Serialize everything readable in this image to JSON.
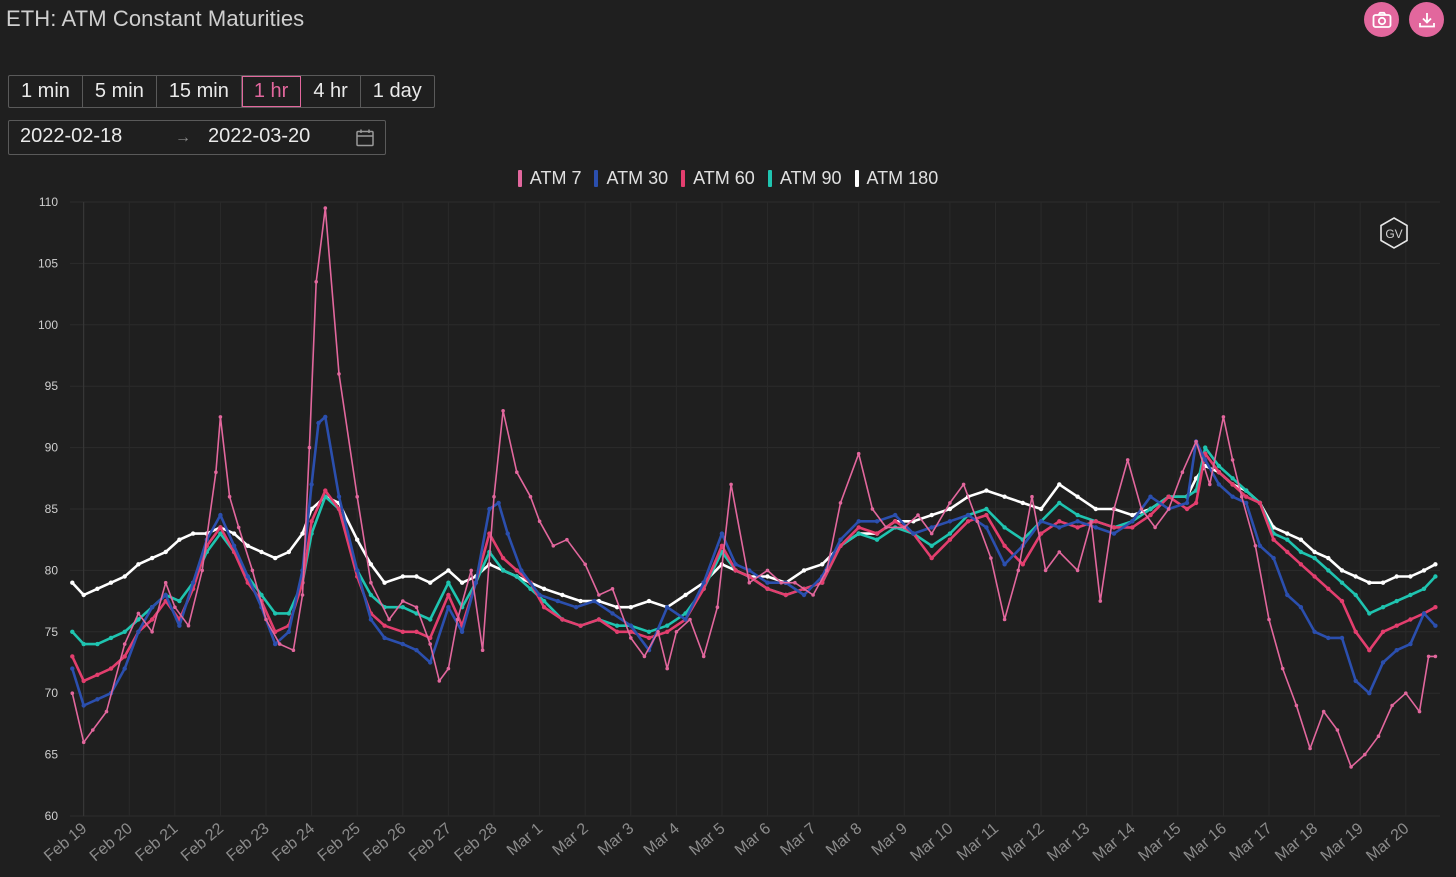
{
  "title": "ETH: ATM Constant Maturities",
  "toolbar": {
    "camera_icon": "camera-icon",
    "download_icon": "download-icon",
    "accent": "#e2679d"
  },
  "intervals": [
    {
      "label": "1 min",
      "active": false
    },
    {
      "label": "5 min",
      "active": false
    },
    {
      "label": "15 min",
      "active": false
    },
    {
      "label": "1 hr",
      "active": true
    },
    {
      "label": "4 hr",
      "active": false
    },
    {
      "label": "1 day",
      "active": false
    }
  ],
  "date_range": {
    "start": "2022-02-18",
    "separator": "→",
    "end": "2022-03-20",
    "calendar_icon": "calendar-icon"
  },
  "watermark": "GV",
  "chart_data": {
    "type": "line",
    "ylim": [
      60,
      110
    ],
    "yticks": [
      60,
      65,
      70,
      75,
      80,
      85,
      90,
      95,
      100,
      105,
      110
    ],
    "xticks": [
      "Feb 19",
      "Feb 20",
      "Feb 21",
      "Feb 22",
      "Feb 23",
      "Feb 24",
      "Feb 25",
      "Feb 26",
      "Feb 27",
      "Feb 28",
      "Mar 1",
      "Mar 2",
      "Mar 3",
      "Mar 4",
      "Mar 5",
      "Mar 6",
      "Mar 7",
      "Mar 8",
      "Mar 9",
      "Mar 10",
      "Mar 11",
      "Mar 12",
      "Mar 13",
      "Mar 14",
      "Mar 15",
      "Mar 16",
      "Mar 17",
      "Mar 18",
      "Mar 19",
      "Mar 20"
    ],
    "xlim": [
      -0.3,
      29.75
    ],
    "grid": true,
    "legend_position": "top-center",
    "series": [
      {
        "name": "ATM 7",
        "color": "#e2679d",
        "x": [
          -0.25,
          0,
          0.2,
          0.5,
          0.9,
          1.2,
          1.5,
          1.8,
          2.0,
          2.3,
          2.6,
          2.9,
          3.0,
          3.2,
          3.4,
          3.7,
          4.0,
          4.3,
          4.6,
          4.8,
          4.95,
          5.1,
          5.3,
          5.6,
          6.0,
          6.3,
          6.7,
          7.0,
          7.3,
          7.6,
          7.8,
          8.0,
          8.2,
          8.5,
          8.75,
          9.0,
          9.2,
          9.5,
          9.8,
          10.0,
          10.3,
          10.6,
          11.0,
          11.3,
          11.6,
          12.0,
          12.3,
          12.6,
          12.8,
          13.0,
          13.3,
          13.6,
          13.9,
          14.2,
          14.6,
          15.0,
          15.3,
          15.6,
          16.0,
          16.3,
          16.6,
          17.0,
          17.3,
          17.6,
          18.0,
          18.3,
          18.6,
          19.0,
          19.3,
          19.6,
          19.9,
          20.2,
          20.5,
          20.8,
          21.1,
          21.4,
          21.8,
          22.1,
          22.3,
          22.6,
          22.9,
          23.2,
          23.5,
          23.8,
          24.1,
          24.4,
          24.7,
          25.0,
          25.2,
          25.4,
          25.7,
          26.0,
          26.3,
          26.6,
          26.9,
          27.2,
          27.5,
          27.8,
          28.1,
          28.4,
          28.7,
          29.0,
          29.3,
          29.5,
          29.65
        ],
        "y": [
          70.0,
          66.0,
          67.0,
          68.5,
          74.0,
          76.5,
          75.0,
          79.0,
          77.0,
          75.5,
          80.0,
          88.0,
          92.5,
          86.0,
          83.5,
          80.0,
          76.0,
          74.0,
          73.5,
          78.0,
          90.0,
          103.5,
          109.5,
          96.0,
          86.0,
          79.0,
          76.0,
          77.5,
          77.0,
          74.0,
          71.0,
          72.0,
          76.0,
          80.0,
          73.5,
          86.0,
          93.0,
          88.0,
          86.0,
          84.0,
          82.0,
          82.5,
          80.5,
          78.0,
          78.5,
          74.5,
          73.0,
          75.0,
          72.0,
          75.0,
          76.0,
          73.0,
          77.0,
          87.0,
          79.0,
          80.0,
          79.0,
          79.0,
          78.0,
          80.0,
          85.5,
          89.5,
          85.0,
          83.5,
          83.5,
          84.5,
          83.0,
          85.5,
          87.0,
          84.0,
          81.0,
          76.0,
          80.0,
          86.0,
          80.0,
          81.5,
          80.0,
          84.0,
          77.5,
          85.0,
          89.0,
          85.0,
          83.5,
          85.0,
          88.0,
          90.5,
          87.0,
          92.5,
          89.0,
          86.0,
          82.0,
          76.0,
          72.0,
          69.0,
          65.5,
          68.5,
          67.0,
          64.0,
          65.0,
          66.5,
          69.0,
          70.0,
          68.5,
          73.0,
          73.0
        ]
      },
      {
        "name": "ATM 30",
        "color": "#2b4fae",
        "x": [
          -0.25,
          0,
          0.3,
          0.6,
          0.9,
          1.2,
          1.5,
          1.8,
          2.1,
          2.4,
          2.7,
          3.0,
          3.3,
          3.6,
          3.9,
          4.2,
          4.5,
          4.8,
          5.0,
          5.15,
          5.3,
          5.6,
          6.0,
          6.3,
          6.6,
          7.0,
          7.3,
          7.6,
          8.0,
          8.3,
          8.6,
          8.9,
          9.1,
          9.3,
          9.6,
          10.0,
          10.4,
          10.8,
          11.2,
          11.6,
          12.0,
          12.4,
          12.8,
          13.2,
          13.6,
          14.0,
          14.3,
          14.6,
          15.0,
          15.4,
          15.8,
          16.2,
          16.6,
          17.0,
          17.4,
          17.8,
          18.2,
          18.6,
          19.0,
          19.4,
          19.8,
          20.2,
          20.6,
          21.0,
          21.4,
          21.8,
          22.2,
          22.6,
          23.0,
          23.4,
          23.8,
          24.2,
          24.4,
          24.6,
          24.9,
          25.2,
          25.5,
          25.8,
          26.1,
          26.4,
          26.7,
          27.0,
          27.3,
          27.6,
          27.9,
          28.2,
          28.5,
          28.8,
          29.1,
          29.4,
          29.65
        ],
        "y": [
          72.0,
          69.0,
          69.5,
          70.0,
          72.0,
          75.0,
          77.0,
          78.0,
          75.5,
          79.0,
          82.5,
          84.5,
          82.0,
          79.5,
          77.0,
          74.0,
          75.0,
          80.0,
          87.0,
          92.0,
          92.5,
          86.0,
          80.0,
          76.0,
          74.5,
          74.0,
          73.5,
          72.5,
          77.0,
          75.0,
          79.0,
          85.0,
          85.5,
          83.0,
          80.0,
          78.0,
          77.5,
          77.0,
          77.5,
          76.5,
          75.5,
          73.5,
          77.0,
          76.0,
          79.0,
          83.0,
          80.5,
          80.0,
          79.0,
          79.0,
          78.0,
          79.5,
          82.5,
          84.0,
          84.0,
          84.5,
          83.0,
          83.5,
          84.0,
          84.5,
          83.5,
          80.5,
          82.0,
          84.0,
          83.5,
          84.0,
          83.5,
          83.0,
          84.0,
          86.0,
          85.0,
          85.5,
          90.5,
          89.0,
          87.0,
          86.0,
          85.5,
          82.0,
          81.0,
          78.0,
          77.0,
          75.0,
          74.5,
          74.5,
          71.0,
          70.0,
          72.5,
          73.5,
          74.0,
          76.5,
          75.5
        ]
      },
      {
        "name": "ATM 60",
        "color": "#e33e6e",
        "x": [
          -0.25,
          0,
          0.3,
          0.6,
          0.9,
          1.2,
          1.5,
          1.8,
          2.1,
          2.4,
          2.7,
          3.0,
          3.3,
          3.6,
          3.9,
          4.2,
          4.5,
          4.8,
          5.0,
          5.3,
          5.6,
          6.0,
          6.3,
          6.6,
          7.0,
          7.3,
          7.6,
          8.0,
          8.3,
          8.6,
          8.9,
          9.2,
          9.5,
          9.8,
          10.1,
          10.5,
          10.9,
          11.3,
          11.7,
          12.0,
          12.4,
          12.8,
          13.2,
          13.6,
          14.0,
          14.3,
          14.6,
          15.0,
          15.4,
          15.8,
          16.2,
          16.6,
          17.0,
          17.4,
          17.8,
          18.2,
          18.6,
          19.0,
          19.4,
          19.8,
          20.2,
          20.6,
          21.0,
          21.4,
          21.8,
          22.2,
          22.6,
          23.0,
          23.4,
          23.8,
          24.2,
          24.4,
          24.6,
          24.9,
          25.2,
          25.5,
          25.8,
          26.1,
          26.4,
          26.7,
          27.0,
          27.3,
          27.6,
          27.9,
          28.2,
          28.5,
          28.8,
          29.1,
          29.4,
          29.65
        ],
        "y": [
          73.0,
          71.0,
          71.5,
          72.0,
          73.0,
          75.0,
          76.0,
          77.5,
          76.0,
          78.5,
          82.0,
          83.5,
          81.5,
          79.0,
          77.5,
          75.0,
          75.5,
          79.0,
          84.0,
          86.5,
          85.0,
          79.5,
          76.5,
          75.5,
          75.0,
          75.0,
          74.5,
          78.0,
          75.5,
          79.0,
          83.0,
          81.0,
          80.0,
          79.0,
          77.0,
          76.0,
          75.5,
          76.0,
          75.0,
          75.0,
          74.5,
          75.0,
          76.0,
          78.5,
          82.0,
          80.0,
          79.5,
          78.5,
          78.0,
          78.5,
          79.0,
          82.0,
          83.5,
          83.0,
          84.0,
          83.0,
          81.0,
          82.5,
          84.0,
          84.5,
          82.0,
          80.5,
          83.0,
          84.0,
          83.5,
          84.0,
          83.5,
          83.5,
          84.5,
          86.0,
          85.0,
          85.5,
          89.5,
          88.0,
          87.0,
          86.0,
          85.5,
          82.5,
          81.5,
          80.5,
          79.5,
          78.5,
          77.5,
          75.0,
          73.5,
          75.0,
          75.5,
          76.0,
          76.5,
          77.0
        ]
      },
      {
        "name": "ATM 90",
        "color": "#1fc4b0",
        "x": [
          -0.25,
          0,
          0.3,
          0.6,
          0.9,
          1.2,
          1.5,
          1.8,
          2.1,
          2.4,
          2.7,
          3.0,
          3.3,
          3.6,
          3.9,
          4.2,
          4.5,
          4.8,
          5.0,
          5.3,
          5.6,
          6.0,
          6.3,
          6.6,
          7.0,
          7.3,
          7.6,
          8.0,
          8.3,
          8.6,
          8.9,
          9.2,
          9.5,
          9.8,
          10.1,
          10.5,
          10.9,
          11.3,
          11.7,
          12.0,
          12.4,
          12.8,
          13.2,
          13.6,
          14.0,
          14.3,
          14.6,
          15.0,
          15.4,
          15.8,
          16.2,
          16.6,
          17.0,
          17.4,
          17.8,
          18.2,
          18.6,
          19.0,
          19.4,
          19.8,
          20.2,
          20.6,
          21.0,
          21.4,
          21.8,
          22.2,
          22.6,
          23.0,
          23.4,
          23.8,
          24.2,
          24.4,
          24.6,
          24.9,
          25.2,
          25.5,
          25.8,
          26.1,
          26.4,
          26.7,
          27.0,
          27.3,
          27.6,
          27.9,
          28.2,
          28.5,
          28.8,
          29.1,
          29.4,
          29.65
        ],
        "y": [
          75.0,
          74.0,
          74.0,
          74.5,
          75.0,
          76.0,
          77.0,
          78.0,
          77.5,
          79.0,
          81.5,
          83.0,
          81.5,
          79.5,
          78.0,
          76.5,
          76.5,
          79.0,
          83.0,
          86.0,
          85.0,
          80.0,
          78.0,
          77.0,
          77.0,
          76.5,
          76.0,
          79.0,
          77.0,
          79.0,
          81.5,
          80.0,
          79.5,
          78.5,
          77.5,
          76.0,
          75.5,
          76.0,
          75.5,
          75.5,
          75.0,
          75.5,
          76.5,
          78.5,
          81.5,
          80.0,
          79.5,
          78.5,
          78.0,
          78.5,
          79.0,
          82.0,
          83.0,
          82.5,
          83.5,
          83.0,
          82.0,
          83.0,
          84.5,
          85.0,
          83.5,
          82.5,
          84.0,
          85.5,
          84.5,
          84.0,
          83.5,
          84.0,
          85.0,
          86.0,
          86.0,
          86.5,
          90.0,
          88.5,
          87.5,
          86.5,
          85.5,
          83.0,
          82.5,
          81.5,
          81.0,
          80.0,
          79.0,
          78.0,
          76.5,
          77.0,
          77.5,
          78.0,
          78.5,
          79.5
        ]
      },
      {
        "name": "ATM 180",
        "color": "#ffffff",
        "x": [
          -0.25,
          0,
          0.3,
          0.6,
          0.9,
          1.2,
          1.5,
          1.8,
          2.1,
          2.4,
          2.7,
          3.0,
          3.3,
          3.6,
          3.9,
          4.2,
          4.5,
          4.8,
          5.0,
          5.3,
          5.6,
          6.0,
          6.3,
          6.6,
          7.0,
          7.3,
          7.6,
          8.0,
          8.3,
          8.6,
          8.9,
          9.2,
          9.5,
          9.8,
          10.1,
          10.5,
          10.9,
          11.3,
          11.7,
          12.0,
          12.4,
          12.8,
          13.2,
          13.6,
          14.0,
          14.3,
          14.6,
          15.0,
          15.4,
          15.8,
          16.2,
          16.6,
          17.0,
          17.4,
          17.8,
          18.2,
          18.6,
          19.0,
          19.4,
          19.8,
          20.2,
          20.6,
          21.0,
          21.4,
          21.8,
          22.2,
          22.6,
          23.0,
          23.4,
          23.8,
          24.2,
          24.4,
          24.6,
          24.9,
          25.2,
          25.5,
          25.8,
          26.1,
          26.4,
          26.7,
          27.0,
          27.3,
          27.6,
          27.9,
          28.2,
          28.5,
          28.8,
          29.1,
          29.4,
          29.65
        ],
        "y": [
          79.0,
          78.0,
          78.5,
          79.0,
          79.5,
          80.5,
          81.0,
          81.5,
          82.5,
          83.0,
          83.0,
          83.5,
          83.0,
          82.0,
          81.5,
          81.0,
          81.5,
          83.0,
          85.0,
          86.0,
          85.5,
          82.5,
          80.5,
          79.0,
          79.5,
          79.5,
          79.0,
          80.0,
          79.0,
          79.5,
          80.5,
          80.0,
          79.5,
          79.0,
          78.5,
          78.0,
          77.5,
          77.5,
          77.0,
          77.0,
          77.5,
          77.0,
          78.0,
          79.0,
          80.5,
          80.0,
          79.5,
          79.5,
          79.0,
          80.0,
          80.5,
          82.0,
          83.0,
          83.0,
          84.0,
          84.0,
          84.5,
          85.0,
          86.0,
          86.5,
          86.0,
          85.5,
          85.0,
          87.0,
          86.0,
          85.0,
          85.0,
          84.5,
          85.0,
          86.0,
          86.0,
          87.5,
          88.5,
          88.0,
          87.0,
          86.5,
          85.5,
          83.5,
          83.0,
          82.5,
          81.5,
          81.0,
          80.0,
          79.5,
          79.0,
          79.0,
          79.5,
          79.5,
          80.0,
          80.5
        ]
      }
    ]
  }
}
